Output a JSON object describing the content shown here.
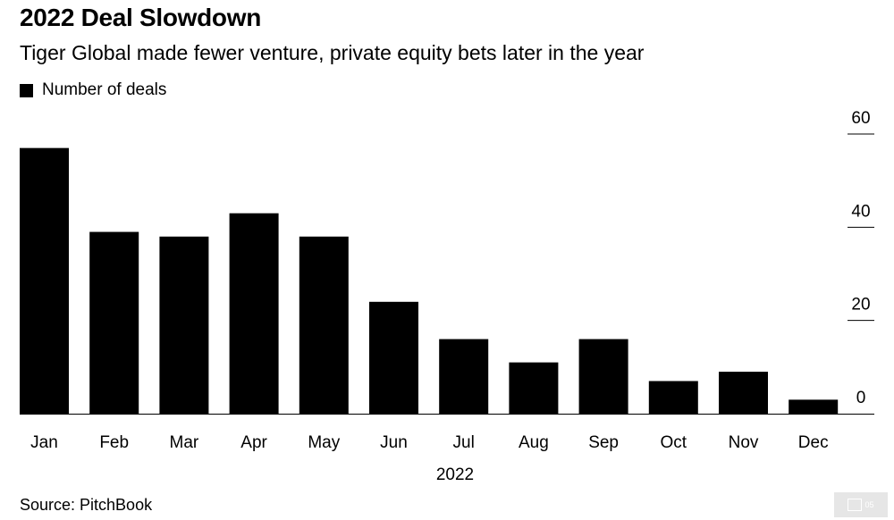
{
  "header": {
    "title": "2022 Deal Slowdown",
    "subtitle": "Tiger Global made fewer venture, private equity bets later in the year"
  },
  "legend": {
    "label": "Number of deals",
    "color": "#000000"
  },
  "footer": {
    "source": "Source: PitchBook",
    "logo_text": "05"
  },
  "chart_data": {
    "type": "bar",
    "title": "2022 Deal Slowdown",
    "subtitle": "Tiger Global made fewer venture, private equity bets later in the year",
    "xlabel": "2022",
    "ylabel": "",
    "categories": [
      "Jan",
      "Feb",
      "Mar",
      "Apr",
      "May",
      "Jun",
      "Jul",
      "Aug",
      "Sep",
      "Oct",
      "Nov",
      "Dec"
    ],
    "series": [
      {
        "name": "Number of deals",
        "color": "#000000",
        "values": [
          57,
          39,
          38,
          43,
          38,
          24,
          16,
          11,
          16,
          7,
          9,
          3
        ]
      }
    ],
    "ylim": [
      0,
      60
    ],
    "yticks": [
      0,
      20,
      40,
      60
    ],
    "y_axis_side": "right",
    "grid": false,
    "legend_position": "top-left"
  }
}
